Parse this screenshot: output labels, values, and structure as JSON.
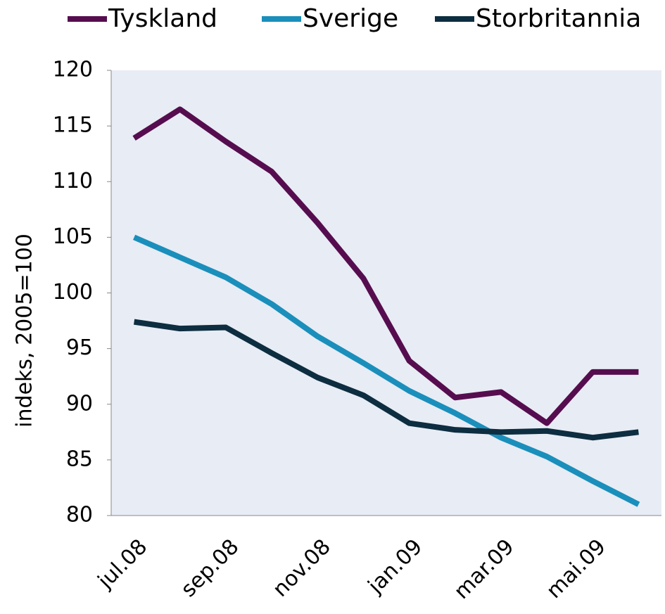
{
  "chart_data": {
    "type": "line",
    "y_label": "indeks, 2005=100",
    "categories": [
      "jul.08",
      null,
      "sep.08",
      null,
      "nov.08",
      null,
      "jan.09",
      null,
      "mar.09",
      null,
      "mai.09",
      null
    ],
    "series": [
      {
        "name": "Tyskland",
        "color": "#560d4f",
        "values": [
          113.9,
          116.5,
          113.6,
          110.9,
          106.3,
          101.3,
          93.9,
          90.6,
          91.1,
          88.3,
          92.9,
          92.9
        ]
      },
      {
        "name": "Sverige",
        "color": "#1a8fbb",
        "values": [
          105.0,
          103.2,
          101.4,
          99.0,
          96.1,
          93.7,
          91.2,
          89.2,
          87.0,
          85.3,
          83.1,
          81.0
        ]
      },
      {
        "name": "Storbritannia",
        "color": "#0d2d40",
        "values": [
          97.4,
          96.8,
          96.9,
          94.6,
          92.4,
          90.8,
          88.3,
          87.7,
          87.5,
          87.6,
          87.0,
          87.5
        ]
      }
    ],
    "ylim": [
      80,
      120
    ],
    "yticks": [
      80,
      85,
      90,
      95,
      100,
      105,
      110,
      115,
      120
    ],
    "grid": false,
    "legend": "top",
    "background": "#e8ecf4"
  }
}
